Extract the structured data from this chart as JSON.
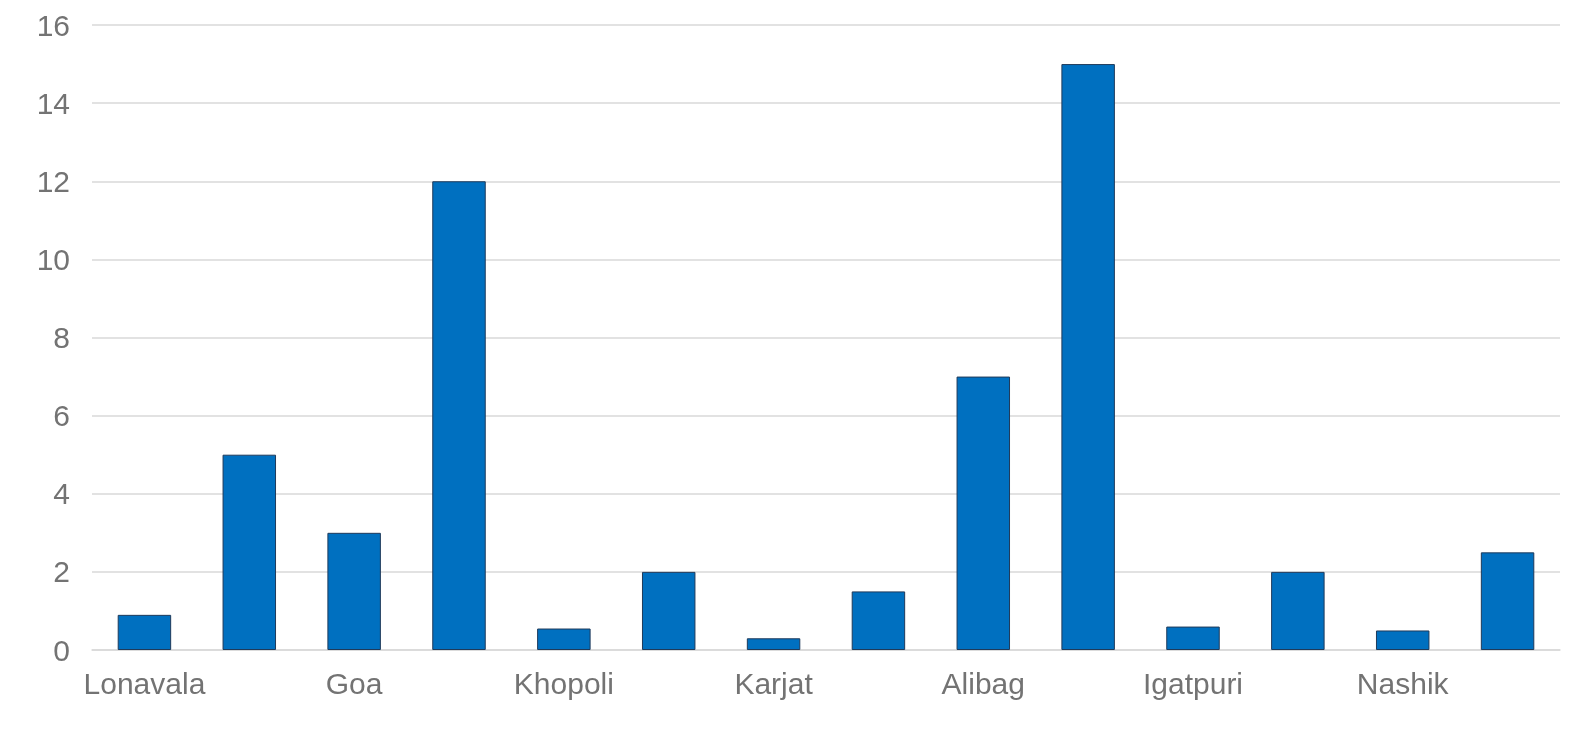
{
  "chart_data": {
    "type": "bar",
    "categories": [
      "Lonavala",
      null,
      "Goa",
      null,
      "Khopoli",
      null,
      "Karjat",
      null,
      "Alibag",
      null,
      "Igatpuri",
      null,
      "Nashik",
      null
    ],
    "values": [
      0.9,
      5,
      3,
      12,
      0.55,
      2,
      0.3,
      1.5,
      7,
      15,
      0.6,
      2,
      0.5,
      2.5
    ],
    "color": "#0070c0",
    "ylim": [
      0,
      16
    ],
    "yticks": [
      0,
      2,
      4,
      6,
      8,
      10,
      12,
      14,
      16
    ],
    "grid": "y"
  }
}
